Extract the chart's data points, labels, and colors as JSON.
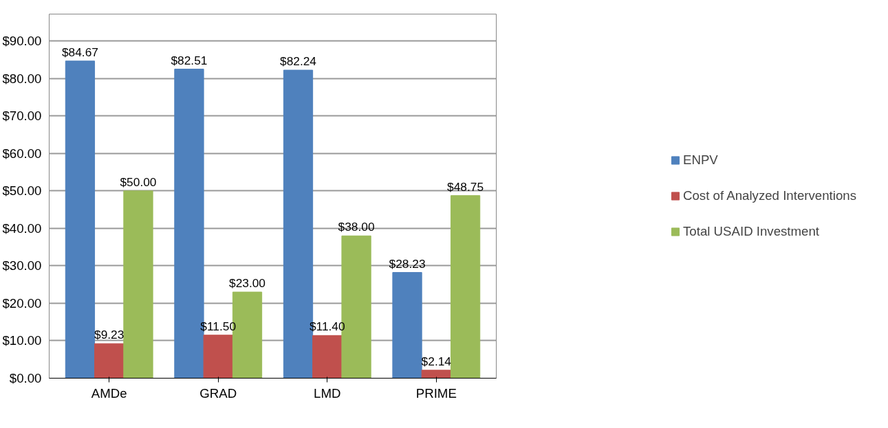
{
  "chart_data": {
    "type": "bar",
    "categories": [
      "AMDe",
      "GRAD",
      "LMD",
      "PRIME"
    ],
    "series": [
      {
        "name": "ENPV",
        "color": "#4f81bd",
        "values": [
          84.67,
          82.51,
          82.24,
          28.23
        ],
        "value_labels": [
          "$84.67",
          "$82.51",
          "$82.24",
          "$28.23"
        ]
      },
      {
        "name": "Cost of Analyzed Interventions",
        "color": "#c0504d",
        "values": [
          9.23,
          11.5,
          11.4,
          2.14
        ],
        "value_labels": [
          "$9.23",
          "$11.50",
          "$11.40",
          "$2.14"
        ]
      },
      {
        "name": "Total USAID Investment",
        "color": "#9bbb59",
        "values": [
          50,
          23,
          38,
          48.75
        ],
        "value_labels": [
          "$50.00",
          "$23.00",
          "$38.00",
          "$48.75"
        ]
      }
    ],
    "ylim": [
      0,
      90
    ],
    "yticks": [
      {
        "value": 0,
        "label": "$0.00"
      },
      {
        "value": 10,
        "label": "$10.00"
      },
      {
        "value": 20,
        "label": "$20.00"
      },
      {
        "value": 30,
        "label": "$30.00"
      },
      {
        "value": 40,
        "label": "$40.00"
      },
      {
        "value": 50,
        "label": "$50.00"
      },
      {
        "value": 60,
        "label": "$60.00"
      },
      {
        "value": 70,
        "label": "$70.00"
      },
      {
        "value": 80,
        "label": "$80.00"
      },
      {
        "value": 90,
        "label": "$90.00"
      }
    ],
    "grid": "y",
    "legend": "right"
  }
}
